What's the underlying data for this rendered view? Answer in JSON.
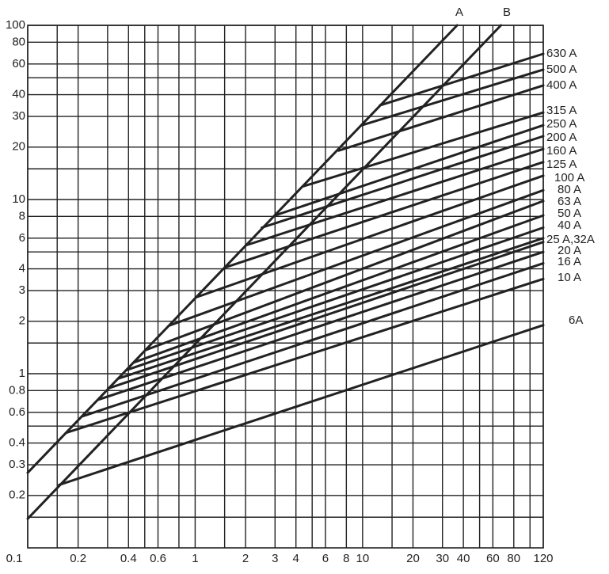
{
  "chart_data": {
    "type": "line",
    "xscale": "log",
    "yscale": "log",
    "grid": true,
    "color": "#222222",
    "xlim": [
      0.1,
      120
    ],
    "ylim": [
      0.1,
      100
    ],
    "xticks": [
      0.1,
      0.2,
      0.4,
      0.6,
      1,
      2,
      3,
      4,
      6,
      8,
      10,
      20,
      30,
      40,
      60,
      80,
      120
    ],
    "yticks": [
      0.2,
      0.3,
      0.4,
      0.6,
      0.8,
      1,
      2,
      3,
      4,
      6,
      8,
      10,
      20,
      30,
      40,
      60,
      80,
      100
    ],
    "xgrid_minor": [
      0.15,
      0.3,
      0.5,
      0.8,
      1.5,
      5,
      15,
      50,
      100
    ],
    "ygrid_minor": [
      0.15,
      0.5,
      1.5,
      5,
      15,
      50
    ],
    "series": [
      {
        "name": "A",
        "x": [
          0.1,
          36.7
        ],
        "values": [
          0.27,
          100
        ]
      },
      {
        "name": "B",
        "x": [
          0.1,
          67
        ],
        "values": [
          0.147,
          100
        ]
      },
      {
        "name": "630 A",
        "x": [
          12.7,
          120
        ],
        "values": [
          34.7,
          68.6
        ]
      },
      {
        "name": "500 A",
        "x": [
          9.9,
          120
        ],
        "values": [
          26.7,
          55.7
        ]
      },
      {
        "name": "400 A",
        "x": [
          7.2,
          120
        ],
        "values": [
          19.1,
          45.2
        ]
      },
      {
        "name": "315 A",
        "x": [
          4.4,
          120
        ],
        "values": [
          11.9,
          31.6
        ]
      },
      {
        "name": "250 A",
        "x": [
          3.0,
          120
        ],
        "values": [
          8.1,
          26.7
        ]
      },
      {
        "name": "200 A",
        "x": [
          2.5,
          120
        ],
        "values": [
          6.9,
          23.1
        ]
      },
      {
        "name": "160 A",
        "x": [
          2.0,
          120
        ],
        "values": [
          5.45,
          19.5
        ]
      },
      {
        "name": "125 A",
        "x": [
          1.5,
          120
        ],
        "values": [
          4.06,
          16.4
        ]
      },
      {
        "name": "100 A",
        "x": [
          1.03,
          120
        ],
        "values": [
          2.76,
          13.7
        ]
      },
      {
        "name": "80 A",
        "x": [
          0.7,
          120
        ],
        "values": [
          1.89,
          11.3
        ]
      },
      {
        "name": "63 A",
        "x": [
          0.51,
          120
        ],
        "values": [
          1.37,
          9.8
        ]
      },
      {
        "name": "50 A",
        "x": [
          0.43,
          120
        ],
        "values": [
          1.16,
          8.1
        ]
      },
      {
        "name": "40 A",
        "x": [
          0.39,
          120
        ],
        "values": [
          1.05,
          6.9
        ]
      },
      {
        "name": "25 A,32A",
        "x": [
          0.31,
          120
        ],
        "values": [
          0.83,
          5.7
        ]
      },
      {
        "x": [
          0.35,
          120
        ],
        "values": [
          0.94,
          6.0
        ]
      },
      {
        "name": "20 A",
        "x": [
          0.265,
          120
        ],
        "values": [
          0.71,
          5.0
        ]
      },
      {
        "name": "16 A",
        "x": [
          0.213,
          120
        ],
        "values": [
          0.57,
          4.3
        ]
      },
      {
        "name": "10 A",
        "x": [
          0.172,
          120
        ],
        "values": [
          0.46,
          3.5
        ]
      },
      {
        "name": "6A",
        "x": [
          0.154,
          120
        ],
        "values": [
          0.23,
          1.9
        ]
      }
    ]
  }
}
